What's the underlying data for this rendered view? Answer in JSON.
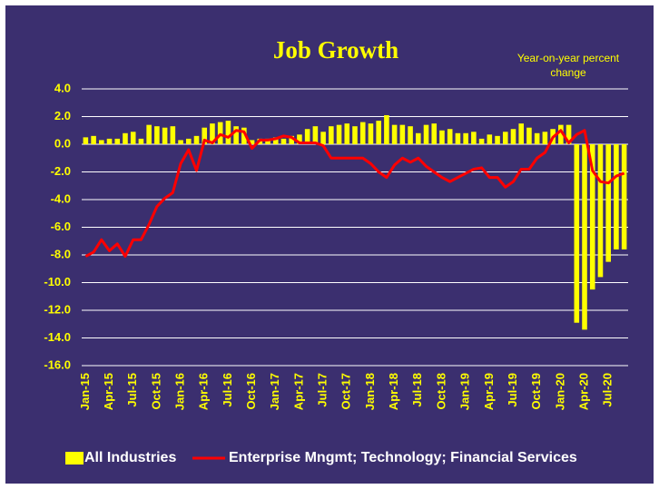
{
  "chart_data": {
    "type": "bar-line",
    "title": "Job Growth",
    "annotation": [
      "Year-on-year percent",
      "change"
    ],
    "categories": [
      "Jan-15",
      null,
      null,
      "Apr-15",
      null,
      null,
      "Jul-15",
      null,
      null,
      "Oct-15",
      null,
      null,
      "Jan-16",
      null,
      null,
      "Apr-16",
      null,
      null,
      "Jul-16",
      null,
      null,
      "Oct-16",
      null,
      null,
      "Jan-17",
      null,
      null,
      "Apr-17",
      null,
      null,
      "Jul-17",
      null,
      null,
      "Oct-17",
      null,
      null,
      "Jan-18",
      null,
      null,
      "Apr-18",
      null,
      null,
      "Jul-18",
      null,
      null,
      "Oct-18",
      null,
      null,
      "Jan-19",
      null,
      null,
      "Apr-19",
      null,
      null,
      "Jul-19",
      null,
      null,
      "Oct-19",
      null,
      null,
      "Jan-20",
      null,
      null,
      "Apr-20",
      null,
      null,
      "Jul-20",
      null,
      null
    ],
    "series": [
      {
        "name": "All Industries",
        "kind": "bar",
        "color": "#ffff00",
        "values": [
          0.5,
          0.6,
          0.3,
          0.4,
          0.4,
          0.8,
          0.9,
          0.4,
          1.4,
          1.3,
          1.2,
          1.3,
          0.3,
          0.4,
          0.6,
          1.2,
          1.5,
          1.6,
          1.7,
          1.3,
          1.2,
          0.3,
          0.4,
          0.4,
          0.5,
          0.4,
          0.6,
          0.7,
          1.1,
          1.3,
          0.9,
          1.3,
          1.4,
          1.5,
          1.3,
          1.6,
          1.5,
          1.7,
          2.1,
          1.4,
          1.4,
          1.3,
          0.8,
          1.4,
          1.5,
          1.0,
          1.1,
          0.8,
          0.8,
          0.9,
          0.4,
          0.7,
          0.6,
          0.9,
          1.1,
          1.5,
          1.2,
          0.8,
          0.9,
          1.1,
          1.4,
          1.4,
          -12.9,
          -13.4,
          -10.5,
          -9.6,
          -8.5,
          -7.6,
          -7.6
        ]
      },
      {
        "name": "Enterprise Mngmt; Technology; Financial Services",
        "kind": "line",
        "color": "#ff0000",
        "values": [
          -8.1,
          -7.8,
          -6.9,
          -7.7,
          -7.2,
          -8.1,
          -6.9,
          -6.9,
          -5.8,
          -4.5,
          -3.9,
          -3.5,
          -1.4,
          -0.4,
          -1.9,
          0.3,
          0.1,
          0.7,
          0.5,
          1.0,
          0.9,
          -0.3,
          0.3,
          0.3,
          0.4,
          0.6,
          0.5,
          0.1,
          0.1,
          0.1,
          -0.1,
          -1.0,
          -1.0,
          -1.0,
          -1.0,
          -1.0,
          -1.4,
          -2.0,
          -2.4,
          -1.5,
          -1.0,
          -1.3,
          -1.0,
          -1.6,
          -2.0,
          -2.4,
          -2.7,
          -2.4,
          -2.1,
          -1.8,
          -1.7,
          -2.4,
          -2.4,
          -3.1,
          -2.7,
          -1.8,
          -1.8,
          -1.0,
          -0.6,
          0.5,
          1.0,
          0.1,
          0.7,
          1.0,
          -1.9,
          -2.7,
          -2.8,
          -2.3,
          -2.1
        ]
      }
    ],
    "ylim": [
      -16,
      4
    ],
    "yticks": [
      {
        "value": -16,
        "label": "-16.0"
      },
      {
        "value": -14,
        "label": "-14.0"
      },
      {
        "value": -12,
        "label": "-12.0"
      },
      {
        "value": -10,
        "label": "-10.0"
      },
      {
        "value": -8,
        "label": "-8.0"
      },
      {
        "value": -6,
        "label": "-6.0"
      },
      {
        "value": -4,
        "label": "-4.0"
      },
      {
        "value": -2,
        "label": "-2.0"
      },
      {
        "value": 0,
        "label": "0.0"
      },
      {
        "value": 2,
        "label": "2.0"
      },
      {
        "value": 4,
        "label": "4.0"
      }
    ],
    "grid": true
  }
}
